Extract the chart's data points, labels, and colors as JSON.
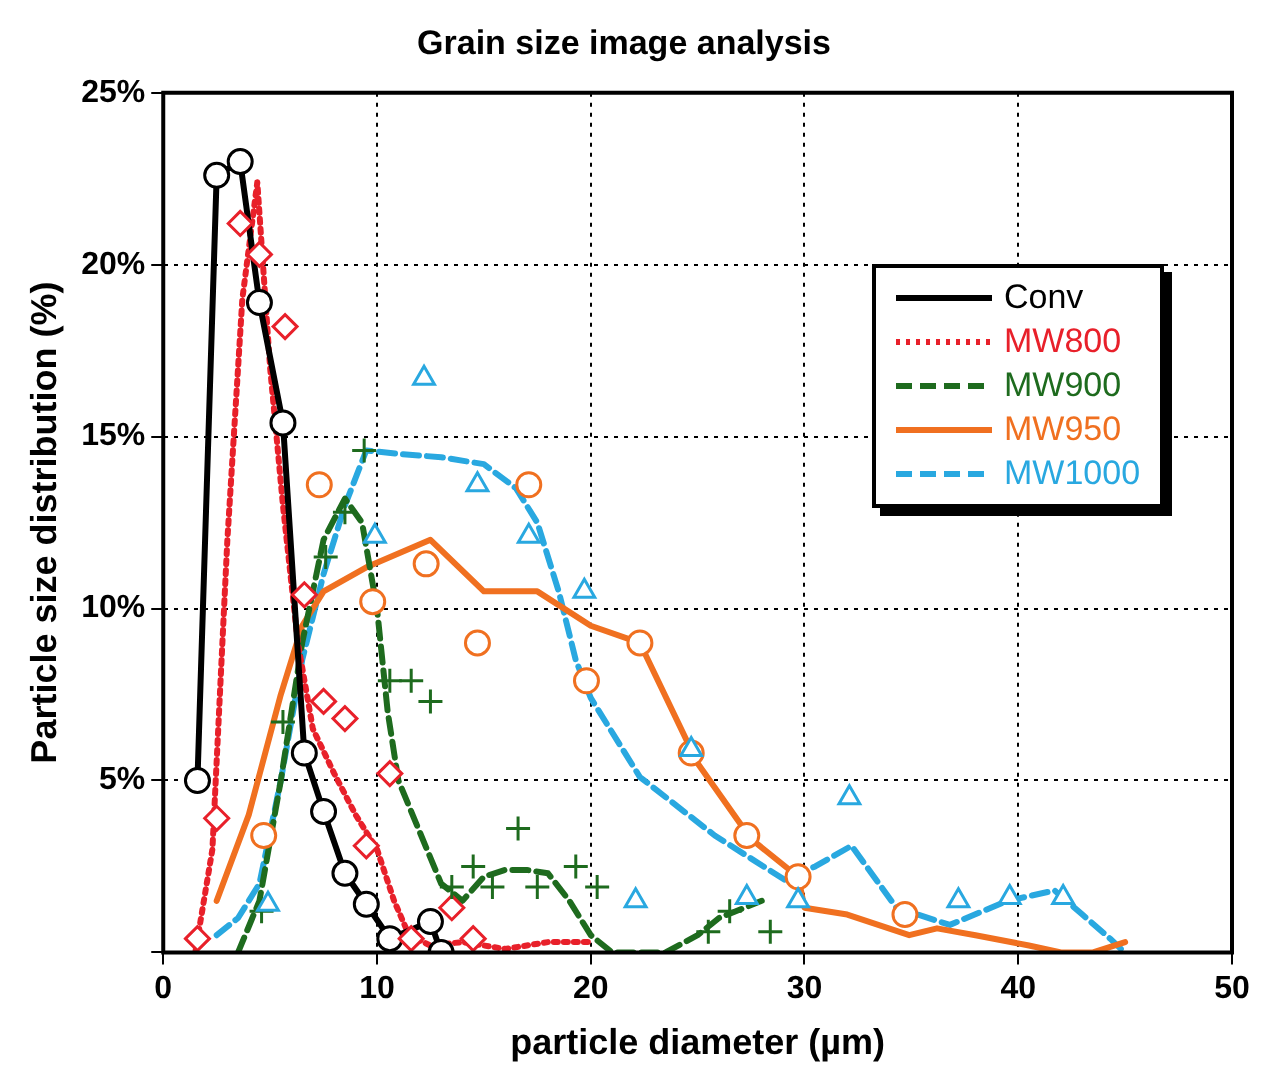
{
  "chart_data": {
    "type": "line",
    "title": "Grain size image analysis",
    "xlabel": "particle diameter (µm)",
    "ylabel": "Particle size distribution (%)",
    "xlim": [
      0,
      50
    ],
    "xticks": [
      0,
      10,
      20,
      30,
      40,
      50
    ],
    "ylim": [
      0,
      25
    ],
    "yticks": [
      {
        "value": 0,
        "label": null
      },
      {
        "value": 5,
        "label": "5%"
      },
      {
        "value": 10,
        "label": "10%"
      },
      {
        "value": 15,
        "label": "15%"
      },
      {
        "value": 20,
        "label": "20%"
      },
      {
        "value": 25,
        "label": "25%"
      }
    ],
    "grid": true,
    "legend": "right",
    "series": [
      {
        "name": "Conv",
        "color": "#000000",
        "line_style": "solid",
        "marker": "circle",
        "x": [
          1.6,
          2.5,
          3.6,
          4.5,
          5.6,
          6.6,
          7.5,
          8.5,
          9.5,
          10.6,
          12.5,
          13
        ],
        "values": [
          5.0,
          22.6,
          23.0,
          18.9,
          15.4,
          5.8,
          4.1,
          2.3,
          1.4,
          0.4,
          0.9,
          0
        ]
      },
      {
        "name": "MW800",
        "color": "#e8202a",
        "line_style": "dotted",
        "marker": "none",
        "x": [
          1.5,
          2.3,
          3.0,
          3.7,
          4.4,
          5.0,
          5.6,
          6.3,
          7.0,
          8.0,
          9.0,
          10.0,
          10.8,
          11.5,
          12.5,
          14,
          16,
          18,
          20
        ],
        "values": [
          0,
          3,
          12,
          19,
          22.4,
          17,
          13,
          9,
          6.5,
          5.2,
          4.0,
          3.0,
          1.5,
          0.5,
          0.2,
          0.3,
          0.1,
          0.3,
          0.3
        ]
      },
      {
        "type": "scatter",
        "color": "#e8202a",
        "marker": "diamond",
        "x": [
          1.6,
          2.5,
          3.6,
          4.5,
          5.7,
          6.6,
          7.5,
          8.5,
          9.5,
          10.6,
          11.6,
          13.5,
          14.5
        ],
        "values": [
          0.4,
          3.9,
          21.2,
          20.3,
          18.2,
          10.4,
          7.3,
          6.8,
          3.1,
          5.2,
          0.4,
          1.3,
          0.4
        ]
      },
      {
        "name": "MW900",
        "color": "#1e6b1e",
        "line_style": "dashed",
        "marker": "none",
        "x": [
          3.5,
          4.5,
          5.5,
          6.5,
          7.5,
          8.5,
          9.3,
          10,
          10.5,
          11,
          12,
          13,
          14,
          15,
          16,
          17,
          18,
          19,
          20,
          21,
          23.5,
          25,
          26,
          28
        ],
        "values": [
          0,
          1.5,
          5,
          9,
          12,
          13.2,
          12.5,
          10,
          7,
          5,
          3.5,
          2,
          1.5,
          2.2,
          2.4,
          2.4,
          2.3,
          1.5,
          0.5,
          0,
          0,
          0.5,
          1,
          1.5
        ]
      },
      {
        "type": "scatter",
        "color": "#1e6b1e",
        "marker": "cross",
        "x": [
          4.6,
          5.6,
          7.6,
          8.5,
          9.4,
          10.6,
          11.6,
          12.5,
          13.5,
          14.5,
          15.4,
          16.6,
          17.5,
          19.3,
          20.3,
          25.5,
          26.5,
          28.4
        ],
        "values": [
          1.2,
          6.7,
          11.5,
          12.8,
          14.6,
          7.9,
          7.9,
          7.3,
          1.9,
          2.5,
          1.9,
          3.6,
          1.9,
          2.5,
          1.9,
          0.6,
          1.2,
          0.6
        ]
      },
      {
        "name": "MW950",
        "color": "#f07020",
        "line_style": "solid",
        "marker": "none",
        "x": [
          2.5,
          4,
          5.5,
          6.5,
          7.5,
          9.5,
          12.5,
          15,
          17.5,
          20,
          22.3,
          25,
          27.5,
          29.7,
          30,
          32,
          34.9,
          36.2,
          38,
          40.5,
          42,
          43.5,
          45
        ],
        "values": [
          1.5,
          4,
          7.5,
          9.5,
          10.5,
          11.2,
          12.0,
          10.5,
          10.5,
          9.5,
          9.0,
          5.5,
          3.3,
          2.2,
          1.3,
          1.1,
          0.5,
          0.7,
          0.5,
          0.2,
          0,
          0,
          0.3
        ]
      },
      {
        "type": "scatter",
        "color": "#f07020",
        "marker": "circle",
        "x": [
          4.7,
          7.3,
          9.8,
          12.3,
          14.7,
          17.1,
          19.8,
          22.3,
          24.7,
          27.3,
          29.7,
          34.7
        ],
        "values": [
          3.4,
          13.6,
          10.2,
          11.3,
          9.0,
          13.6,
          7.9,
          9.0,
          5.8,
          3.4,
          2.2,
          1.1
        ]
      },
      {
        "name": "MW1000",
        "color": "#29a8e0",
        "line_style": "dashed",
        "marker": "none",
        "x": [
          2.5,
          3.5,
          4.5,
          5.5,
          6.5,
          7.5,
          8.5,
          9.5,
          11,
          13,
          15,
          16.5,
          17.5,
          18.5,
          19.3,
          20,
          22.3,
          25.8,
          29.1,
          30.5,
          32.2,
          34.3,
          36.8,
          39.5,
          41.7,
          43,
          44.3,
          44.8
        ],
        "values": [
          0.5,
          1,
          2,
          5,
          8.5,
          11,
          13,
          14.6,
          14.5,
          14.4,
          14.2,
          13.5,
          12.5,
          10.5,
          8.5,
          7.4,
          5.1,
          3.4,
          2.1,
          2.5,
          3.1,
          1.3,
          0.8,
          1.5,
          1.8,
          1.1,
          0.4,
          0.1
        ]
      },
      {
        "type": "scatter",
        "color": "#29a8e0",
        "marker": "triangle",
        "x": [
          4.9,
          9.9,
          12.2,
          14.7,
          17.1,
          19.7,
          22.1,
          24.7,
          27.3,
          29.7,
          32.1,
          37.2,
          39.6,
          42.1
        ],
        "values": [
          1.4,
          12.1,
          16.7,
          13.6,
          12.1,
          10.5,
          1.5,
          5.9,
          1.6,
          1.5,
          4.5,
          1.5,
          1.6,
          1.6
        ]
      }
    ]
  }
}
